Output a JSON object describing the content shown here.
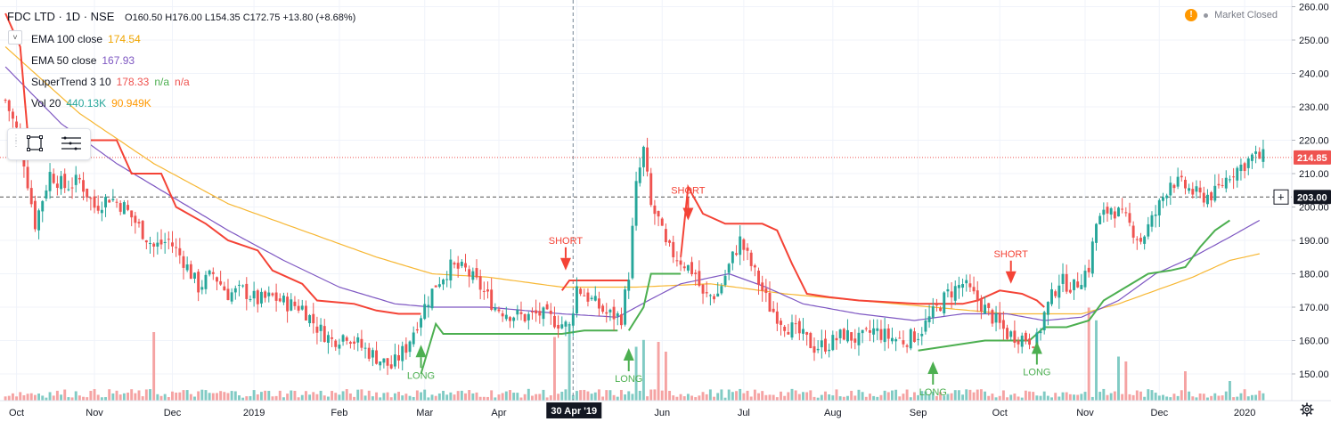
{
  "header": {
    "symbol": "FDC LTD · 1D · NSE",
    "ohlc": "O160.50 H176.00 L154.35 C172.75 +13.80 (+8.68%)",
    "status": "Market Closed",
    "warn_glyph": "!"
  },
  "indicators": [
    {
      "name": "EMA 100 close",
      "values": [
        "174.54"
      ],
      "colors": [
        "#f0a500"
      ]
    },
    {
      "name": "EMA 50 close",
      "values": [
        "167.93"
      ],
      "colors": [
        "#7e57c2"
      ]
    },
    {
      "name": "SuperTrend 3 10",
      "values": [
        "178.33",
        "n/a",
        "n/a"
      ],
      "colors": [
        "#ef5350",
        "#4caf50",
        "#ef5350"
      ]
    },
    {
      "name": "Vol 20",
      "values": [
        "440.13K",
        "90.949K"
      ],
      "colors": [
        "#26a69a",
        "#ff9800"
      ]
    }
  ],
  "colors": {
    "up": "#26a69a",
    "down": "#ef5350",
    "ema100": "#f7b733",
    "ema50": "#7e57c2",
    "st_up": "#4caf50",
    "st_down": "#f44336",
    "vol_up": "#80cbc4",
    "vol_down": "#f5a3a3"
  },
  "chart_data": {
    "type": "candlestick",
    "symbol": "FDC LTD",
    "interval": "1D",
    "exchange": "NSE",
    "y_axis": {
      "range": [
        142,
        262
      ],
      "ticks": [
        "150.00",
        "160.00",
        "170.00",
        "180.00",
        "190.00",
        "200.00",
        "210.00",
        "220.00",
        "230.00",
        "240.00",
        "250.00",
        "260.00"
      ],
      "tick_values": [
        150,
        160,
        170,
        180,
        190,
        200,
        210,
        220,
        230,
        240,
        250,
        260
      ],
      "position": "right"
    },
    "x_axis": {
      "labels": [
        "Oct",
        "Nov",
        "Dec",
        "2019",
        "Feb",
        "Mar",
        "Apr",
        "May",
        "Jun",
        "Jul",
        "Aug",
        "Sep",
        "Oct",
        "Nov",
        "Dec",
        "2020"
      ],
      "label_index": [
        3,
        24,
        45,
        67,
        90,
        113,
        133,
        154,
        177,
        199,
        223,
        246,
        268,
        291,
        311,
        334
      ],
      "crosshair_label": "30 Apr '19",
      "crosshair_index": 153,
      "total_bars": 340
    },
    "price_lines": [
      {
        "value": 214.85,
        "label": "214.85",
        "style": "dotted",
        "color": "#ef5350"
      },
      {
        "value": 203.0,
        "label": "203.00",
        "style": "dashed",
        "color": "#555555"
      }
    ],
    "close_anchors": [
      [
        0,
        232
      ],
      [
        4,
        220
      ],
      [
        8,
        195
      ],
      [
        12,
        210
      ],
      [
        16,
        206
      ],
      [
        20,
        208
      ],
      [
        24,
        200
      ],
      [
        28,
        203
      ],
      [
        32,
        200
      ],
      [
        36,
        194
      ],
      [
        40,
        188
      ],
      [
        44,
        190
      ],
      [
        48,
        184
      ],
      [
        52,
        176
      ],
      [
        56,
        180
      ],
      [
        60,
        174
      ],
      [
        64,
        175
      ],
      [
        68,
        172
      ],
      [
        72,
        173
      ],
      [
        76,
        171
      ],
      [
        80,
        170
      ],
      [
        84,
        164
      ],
      [
        88,
        160
      ],
      [
        92,
        162
      ],
      [
        96,
        158
      ],
      [
        100,
        155
      ],
      [
        104,
        152
      ],
      [
        108,
        158
      ],
      [
        112,
        168
      ],
      [
        116,
        177
      ],
      [
        120,
        182
      ],
      [
        124,
        181
      ],
      [
        128,
        176
      ],
      [
        132,
        170
      ],
      [
        136,
        168
      ],
      [
        140,
        167
      ],
      [
        144,
        168
      ],
      [
        148,
        166
      ],
      [
        152,
        164
      ],
      [
        154,
        176
      ],
      [
        158,
        172
      ],
      [
        162,
        168
      ],
      [
        166,
        167
      ],
      [
        168,
        180
      ],
      [
        170,
        206
      ],
      [
        172,
        217
      ],
      [
        174,
        200
      ],
      [
        176,
        196
      ],
      [
        178,
        188
      ],
      [
        182,
        184
      ],
      [
        186,
        180
      ],
      [
        188,
        173
      ],
      [
        192,
        174
      ],
      [
        196,
        185
      ],
      [
        198,
        190
      ],
      [
        202,
        180
      ],
      [
        206,
        170
      ],
      [
        210,
        165
      ],
      [
        214,
        162
      ],
      [
        218,
        158
      ],
      [
        222,
        159
      ],
      [
        226,
        162
      ],
      [
        230,
        160
      ],
      [
        234,
        163
      ],
      [
        238,
        161
      ],
      [
        242,
        160
      ],
      [
        246,
        162
      ],
      [
        250,
        168
      ],
      [
        254,
        174
      ],
      [
        258,
        177
      ],
      [
        262,
        172
      ],
      [
        266,
        167
      ],
      [
        270,
        162
      ],
      [
        274,
        161
      ],
      [
        278,
        160
      ],
      [
        280,
        168
      ],
      [
        284,
        178
      ],
      [
        288,
        176
      ],
      [
        292,
        182
      ],
      [
        294,
        195
      ],
      [
        298,
        200
      ],
      [
        302,
        196
      ],
      [
        306,
        190
      ],
      [
        310,
        198
      ],
      [
        314,
        208
      ],
      [
        318,
        206
      ],
      [
        322,
        203
      ],
      [
        326,
        204
      ],
      [
        330,
        210
      ],
      [
        334,
        213
      ],
      [
        336,
        215
      ],
      [
        338,
        214.85
      ]
    ],
    "ema100_anchors": [
      [
        0,
        248
      ],
      [
        20,
        228
      ],
      [
        40,
        213
      ],
      [
        60,
        201
      ],
      [
        80,
        193
      ],
      [
        100,
        185
      ],
      [
        115,
        180
      ],
      [
        130,
        179
      ],
      [
        150,
        176
      ],
      [
        170,
        176
      ],
      [
        190,
        177
      ],
      [
        210,
        174
      ],
      [
        230,
        172
      ],
      [
        250,
        170
      ],
      [
        270,
        168
      ],
      [
        290,
        168
      ],
      [
        300,
        171
      ],
      [
        310,
        175
      ],
      [
        320,
        179
      ],
      [
        330,
        184
      ],
      [
        338,
        186
      ]
    ],
    "ema50_anchors": [
      [
        0,
        242
      ],
      [
        15,
        225
      ],
      [
        30,
        213
      ],
      [
        45,
        203
      ],
      [
        60,
        193
      ],
      [
        75,
        184
      ],
      [
        90,
        176
      ],
      [
        105,
        171
      ],
      [
        115,
        170
      ],
      [
        130,
        170
      ],
      [
        150,
        168
      ],
      [
        165,
        167
      ],
      [
        175,
        173
      ],
      [
        182,
        177
      ],
      [
        195,
        180
      ],
      [
        205,
        176
      ],
      [
        215,
        171
      ],
      [
        230,
        168
      ],
      [
        245,
        166
      ],
      [
        258,
        168
      ],
      [
        270,
        168
      ],
      [
        280,
        166
      ],
      [
        290,
        167
      ],
      [
        300,
        172
      ],
      [
        310,
        180
      ],
      [
        320,
        185
      ],
      [
        330,
        191
      ],
      [
        338,
        196
      ]
    ],
    "supertrend": [
      {
        "dir": "down",
        "points": [
          [
            0,
            258
          ],
          [
            4,
            248
          ],
          [
            6,
            222
          ],
          [
            10,
            220
          ],
          [
            20,
            220
          ],
          [
            30,
            220
          ],
          [
            34,
            210
          ],
          [
            42,
            210
          ],
          [
            46,
            200
          ],
          [
            54,
            195
          ],
          [
            60,
            190
          ],
          [
            68,
            187
          ],
          [
            72,
            181
          ],
          [
            80,
            177
          ],
          [
            84,
            172
          ],
          [
            94,
            171
          ],
          [
            100,
            169
          ],
          [
            106,
            168
          ],
          [
            112,
            168
          ]
        ]
      },
      {
        "dir": "up",
        "points": [
          [
            112,
            150
          ],
          [
            116,
            165
          ],
          [
            118,
            162
          ],
          [
            130,
            162
          ],
          [
            140,
            162
          ],
          [
            150,
            162
          ],
          [
            156,
            163
          ],
          [
            158,
            163
          ],
          [
            165,
            163
          ]
        ]
      },
      {
        "dir": "down",
        "points": [
          [
            150,
            175
          ],
          [
            152,
            178
          ],
          [
            164,
            178
          ],
          [
            168,
            178
          ]
        ]
      },
      {
        "dir": "up",
        "points": [
          [
            168,
            163
          ],
          [
            172,
            170
          ],
          [
            174,
            180
          ],
          [
            182,
            180
          ]
        ]
      },
      {
        "dir": "down",
        "points": [
          [
            182,
            185
          ],
          [
            184,
            206
          ],
          [
            188,
            198
          ],
          [
            194,
            195
          ],
          [
            204,
            195
          ],
          [
            208,
            193
          ],
          [
            212,
            183
          ],
          [
            216,
            174
          ],
          [
            222,
            173
          ],
          [
            230,
            172
          ],
          [
            246,
            171
          ],
          [
            258,
            171
          ],
          [
            262,
            172
          ],
          [
            268,
            175
          ],
          [
            274,
            174
          ],
          [
            278,
            172
          ],
          [
            280,
            170
          ]
        ]
      },
      {
        "dir": "up",
        "points": [
          [
            246,
            157
          ],
          [
            252,
            158
          ],
          [
            258,
            159
          ],
          [
            264,
            160
          ],
          [
            270,
            160
          ],
          [
            276,
            160
          ],
          [
            280,
            164
          ],
          [
            286,
            164
          ],
          [
            292,
            166
          ],
          [
            296,
            172
          ],
          [
            302,
            176
          ],
          [
            308,
            180
          ],
          [
            314,
            181
          ],
          [
            318,
            182
          ],
          [
            322,
            188
          ],
          [
            326,
            193
          ],
          [
            330,
            196
          ]
        ]
      }
    ],
    "signals": [
      {
        "label": "SHORT",
        "type": "short",
        "index": 151,
        "value": 181
      },
      {
        "label": "LONG",
        "type": "long",
        "index": 112,
        "value": 155
      },
      {
        "label": "LONG",
        "type": "long",
        "index": 168,
        "value": 154
      },
      {
        "label": "SHORT",
        "type": "short",
        "index": 184,
        "value": 196
      },
      {
        "label": "LONG",
        "type": "long",
        "index": 250,
        "value": 150
      },
      {
        "label": "SHORT",
        "type": "short",
        "index": 271,
        "value": 177
      },
      {
        "label": "LONG",
        "type": "long",
        "index": 278,
        "value": 156
      }
    ],
    "volume": {
      "max": 440130,
      "spikes": [
        [
          40,
          0.7
        ],
        [
          148,
          0.65
        ],
        [
          152,
          0.78
        ],
        [
          170,
          0.55
        ],
        [
          172,
          0.62
        ],
        [
          176,
          0.6
        ],
        [
          178,
          0.5
        ],
        [
          292,
          0.95
        ],
        [
          294,
          0.82
        ],
        [
          300,
          0.45
        ],
        [
          302,
          0.4
        ],
        [
          318,
          0.3
        ],
        [
          330,
          0.2
        ]
      ]
    }
  }
}
